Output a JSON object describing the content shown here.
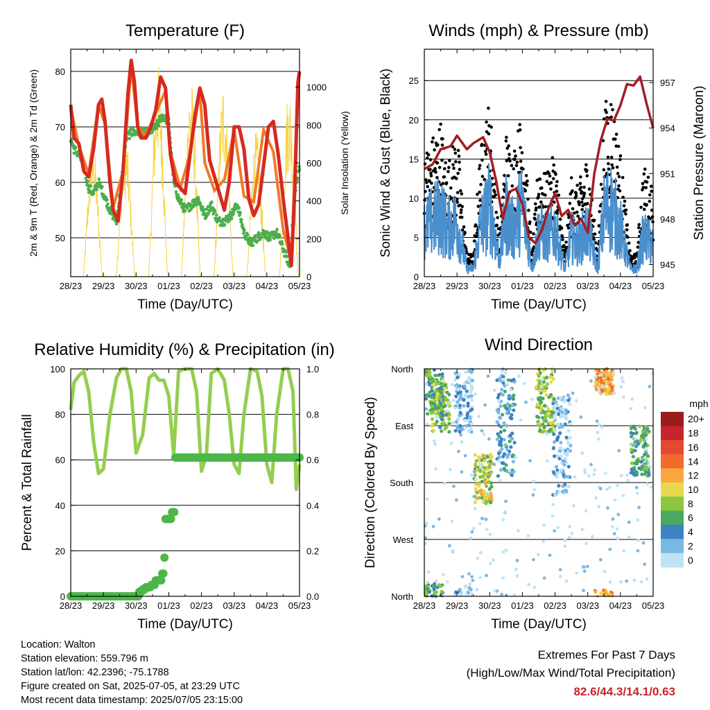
{
  "time_axis": {
    "tick_labels": [
      "28/23",
      "29/23",
      "30/23",
      "01/23",
      "02/23",
      "03/23",
      "04/23",
      "05/23"
    ],
    "xlabel": "Time (Day/UTC)"
  },
  "chart_data": [
    {
      "id": "temperature",
      "type": "line",
      "title": "Temperature (F)",
      "ylabel_left": "2m & 9m T (Red, Orange) & 2m Td (Green)",
      "ylabel_right": "Solar Insolation (Yellow)",
      "ylim_left": [
        43,
        84
      ],
      "ylim_right": [
        0,
        1200
      ],
      "yticks_left": [
        50,
        60,
        70,
        80
      ],
      "yticks_right": [
        0,
        200,
        400,
        600,
        800,
        1000
      ],
      "grid_y": [
        50,
        60,
        70,
        80
      ],
      "x_range_days": [
        0,
        7
      ],
      "series": [
        {
          "name": "2m T",
          "color": "#d62a20",
          "axis": "left",
          "x": [
            0,
            0.1,
            0.25,
            0.4,
            0.55,
            0.7,
            0.85,
            0.95,
            1.05,
            1.2,
            1.3,
            1.45,
            1.6,
            1.75,
            1.85,
            1.95,
            2.05,
            2.15,
            2.3,
            2.45,
            2.6,
            2.75,
            2.9,
            3.05,
            3.2,
            3.35,
            3.5,
            3.65,
            3.8,
            3.95,
            4.1,
            4.25,
            4.4,
            4.55,
            4.7,
            4.85,
            5.0,
            5.15,
            5.3,
            5.45,
            5.6,
            5.75,
            5.9,
            6.05,
            6.2,
            6.35,
            6.5,
            6.65,
            6.75,
            6.85,
            6.95,
            7.0
          ],
          "y": [
            74,
            68,
            67,
            62,
            61,
            66,
            74,
            75,
            71,
            60,
            55,
            53,
            62,
            76,
            82,
            78,
            70,
            68,
            68,
            70,
            73,
            79,
            77,
            65,
            60,
            59,
            58,
            65,
            72,
            77,
            74,
            64,
            61,
            58,
            55,
            60,
            70,
            70,
            66,
            57,
            54,
            56,
            63,
            70,
            71,
            65,
            57,
            50,
            45,
            58,
            78,
            80
          ]
        },
        {
          "name": "9m T",
          "color": "#f07a2a",
          "axis": "left",
          "x": [
            0,
            0.25,
            0.55,
            0.85,
            1.05,
            1.3,
            1.6,
            1.85,
            2.05,
            2.3,
            2.6,
            2.9,
            3.05,
            3.35,
            3.65,
            3.95,
            4.1,
            4.4,
            4.7,
            5.0,
            5.3,
            5.6,
            5.9,
            6.2,
            6.5,
            6.75,
            6.95,
            7.0
          ],
          "y": [
            73.5,
            66.5,
            61.5,
            74,
            70.5,
            55.5,
            62,
            81,
            70,
            68.5,
            72.5,
            76.5,
            65.5,
            59,
            65,
            76.5,
            63.5,
            58.5,
            60.5,
            69.5,
            57.5,
            56.5,
            69.5,
            65.5,
            51.5,
            45.5,
            77.5,
            79.5
          ]
        },
        {
          "name": "2m Td",
          "color": "#4cae4c",
          "axis": "left",
          "x": [
            0,
            0.1,
            0.25,
            0.4,
            0.55,
            0.7,
            0.85,
            1.0,
            1.2,
            1.4,
            1.55,
            1.7,
            1.85,
            2.0,
            2.2,
            2.4,
            2.6,
            2.8,
            3.0,
            3.15,
            3.3,
            3.5,
            3.7,
            3.9,
            4.1,
            4.3,
            4.5,
            4.7,
            4.9,
            5.1,
            5.3,
            5.5,
            5.7,
            5.9,
            6.1,
            6.3,
            6.5,
            6.7,
            6.85,
            7.0
          ],
          "y": [
            68,
            66,
            65,
            63,
            59,
            58,
            60,
            58,
            55,
            53,
            60,
            68,
            69,
            69,
            69,
            69,
            70,
            72,
            71,
            60,
            57,
            55,
            56,
            57,
            54,
            56,
            53,
            53,
            54,
            56,
            51,
            49,
            50,
            51,
            50,
            51,
            48,
            45,
            58,
            63
          ]
        },
        {
          "name": "Solar Insolation",
          "color": "#f7d33e",
          "axis": "right",
          "day_peaks": [
            720,
            740,
            1130,
            1050,
            1040,
            770,
            1000,
            1000
          ]
        }
      ]
    },
    {
      "id": "winds",
      "type": "scatter",
      "title": "Winds (mph) & Pressure (mb)",
      "ylabel_left": "Sonic Wind & Gust (Blue, Black)",
      "ylabel_right": "Station Pressure (Maroon)",
      "ylim_left": [
        0,
        29
      ],
      "ylim_right": [
        944.2,
        959.2
      ],
      "yticks_left": [
        0,
        5,
        10,
        15,
        20,
        25
      ],
      "yticks_right": [
        945,
        948,
        951,
        954,
        957
      ],
      "grid_y": [
        5,
        10,
        15,
        20,
        25
      ],
      "x_range_days": [
        0,
        7
      ],
      "series": [
        {
          "name": "Sonic Wind",
          "color": "#4a8fcc",
          "axis": "left",
          "x": [
            0,
            0.5,
            0.7,
            1.0,
            1.3,
            1.5,
            1.7,
            2.0,
            2.3,
            2.5,
            2.7,
            3.0,
            3.3,
            3.5,
            3.7,
            4.0,
            4.3,
            4.5,
            4.7,
            5.0,
            5.3,
            5.5,
            5.7,
            6.0,
            6.3,
            6.5,
            6.7,
            7.0
          ],
          "y": [
            6,
            8,
            6,
            7,
            1,
            1,
            6,
            9,
            2,
            8,
            6,
            9,
            1,
            6,
            5,
            6,
            1,
            5,
            4,
            6,
            1,
            8,
            9,
            6,
            1,
            1,
            5,
            4
          ]
        },
        {
          "name": "Gust",
          "color": "#000000",
          "axis": "left",
          "x": [
            0,
            0.5,
            0.7,
            1.0,
            1.3,
            1.5,
            1.7,
            2.0,
            2.3,
            2.5,
            2.7,
            3.0,
            3.3,
            3.5,
            3.7,
            4.0,
            4.3,
            4.5,
            4.7,
            5.0,
            5.3,
            5.5,
            5.7,
            6.0,
            6.3,
            6.5,
            6.7,
            7.0
          ],
          "y": [
            11,
            14,
            10,
            13,
            2,
            2,
            11,
            16,
            3,
            13,
            11,
            15,
            2,
            11,
            9,
            11,
            2,
            9,
            8,
            11,
            2,
            15,
            17,
            11,
            2,
            2,
            10,
            8
          ]
        },
        {
          "name": "Station Pressure",
          "color": "#a01e22",
          "axis": "right",
          "x": [
            0,
            0.25,
            0.5,
            0.8,
            1.0,
            1.3,
            1.5,
            1.8,
            2.0,
            2.2,
            2.4,
            2.6,
            2.8,
            3.0,
            3.2,
            3.4,
            3.6,
            3.8,
            4.0,
            4.2,
            4.4,
            4.6,
            4.8,
            5.0,
            5.2,
            5.4,
            5.6,
            5.8,
            6.0,
            6.2,
            6.4,
            6.6,
            6.8,
            7.0
          ],
          "y": [
            951.3,
            951.6,
            952.6,
            952.8,
            953.5,
            952.6,
            953.0,
            953.4,
            952.4,
            950.5,
            948.0,
            949.8,
            950.0,
            949.0,
            946.8,
            946.4,
            947.3,
            948.7,
            949.7,
            948.2,
            948.6,
            947.6,
            948.0,
            947.1,
            951.0,
            953.2,
            954.6,
            954.5,
            955.5,
            956.9,
            956.8,
            957.4,
            955.6,
            954.0
          ]
        }
      ]
    },
    {
      "id": "humidity",
      "type": "line",
      "title": "Relative Humidity (%) & Precipitation (in)",
      "ylabel_left": "Percent & Total Rainfall",
      "ylim_left": [
        0,
        100
      ],
      "ylim_right": [
        0,
        1.0
      ],
      "yticks_left": [
        0,
        20,
        40,
        60,
        80,
        100
      ],
      "yticks_right": [
        0.0,
        0.2,
        0.4,
        0.6,
        0.8,
        1.0
      ],
      "grid_y": [
        20,
        40,
        60,
        80
      ],
      "x_range_days": [
        0,
        7
      ],
      "series": [
        {
          "name": "Relative Humidity",
          "color": "#95cd50",
          "axis": "left",
          "x": [
            0,
            0.1,
            0.25,
            0.4,
            0.55,
            0.7,
            0.85,
            1.0,
            1.2,
            1.4,
            1.55,
            1.7,
            1.85,
            2.0,
            2.2,
            2.4,
            2.55,
            2.7,
            2.85,
            3.0,
            3.15,
            3.3,
            3.5,
            3.7,
            3.85,
            4.0,
            4.15,
            4.3,
            4.5,
            4.7,
            4.85,
            5.0,
            5.15,
            5.3,
            5.5,
            5.7,
            5.85,
            6.0,
            6.15,
            6.3,
            6.5,
            6.65,
            6.8,
            6.9,
            7.0
          ],
          "y": [
            82,
            94,
            97,
            99,
            90,
            68,
            54,
            56,
            80,
            96,
            100,
            100,
            90,
            63,
            71,
            96,
            98,
            95,
            95,
            88,
            62,
            99,
            100,
            100,
            90,
            55,
            62,
            98,
            100,
            95,
            80,
            58,
            54,
            80,
            100,
            99,
            88,
            58,
            50,
            80,
            100,
            100,
            90,
            47,
            58
          ]
        },
        {
          "name": "Total Precipitation",
          "color": "#4cb748",
          "axis": "right",
          "x": [
            0,
            0.5,
            1.0,
            1.5,
            2.0,
            2.1,
            2.2,
            2.3,
            2.45,
            2.6,
            2.7,
            2.8,
            2.85,
            2.9,
            3.0,
            3.1,
            3.2,
            3.5,
            4.0,
            4.5,
            5.0,
            5.5,
            6.0,
            6.5,
            7.0
          ],
          "y": [
            0,
            0,
            0,
            0,
            0,
            0.02,
            0.03,
            0.04,
            0.05,
            0.07,
            0.07,
            0.1,
            0.17,
            0.34,
            0.34,
            0.37,
            0.61,
            0.61,
            0.61,
            0.61,
            0.61,
            0.61,
            0.61,
            0.61,
            0.61
          ]
        }
      ]
    },
    {
      "id": "wind_direction",
      "type": "scatter",
      "title": "Wind Direction",
      "ylabel": "Direction (Colored By Speed)",
      "ytick_labels": [
        "North",
        "East",
        "South",
        "West",
        "North"
      ],
      "ylim_deg": [
        0,
        360
      ],
      "grid_y_deg": [
        90,
        180,
        270
      ],
      "x_range_days": [
        0,
        7
      ],
      "colorbar": {
        "label": "mph",
        "labels": [
          "20+",
          "18",
          "16",
          "14",
          "12",
          "10",
          "8",
          "6",
          "4",
          "2",
          "0"
        ],
        "colors": [
          "#9b1b1f",
          "#c8242b",
          "#e34a33",
          "#f26a2c",
          "#f9a640",
          "#e7d94d",
          "#8cc63f",
          "#49a861",
          "#3d82c4",
          "#7ab8e4",
          "#bfe3f5"
        ]
      },
      "clusters": [
        {
          "day": 0.3,
          "deg_center": 330,
          "spread": 50,
          "speed": 6
        },
        {
          "day": 0.5,
          "deg_center": 300,
          "spread": 40,
          "speed": 7
        },
        {
          "day": 1.2,
          "deg_center": 320,
          "spread": 60,
          "speed": 2
        },
        {
          "day": 1.8,
          "deg_center": 185,
          "spread": 40,
          "speed": 9
        },
        {
          "day": 2.5,
          "deg_center": 270,
          "spread": 80,
          "speed": 4
        },
        {
          "day": 3.7,
          "deg_center": 310,
          "spread": 50,
          "speed": 8
        },
        {
          "day": 4.2,
          "deg_center": 240,
          "spread": 80,
          "speed": 2
        },
        {
          "day": 5.5,
          "deg_center": 345,
          "spread": 25,
          "speed": 12
        },
        {
          "day": 6.6,
          "deg_center": 230,
          "spread": 40,
          "speed": 6
        }
      ]
    }
  ],
  "info": {
    "location": "Location: Walton",
    "elevation": "Station elevation: 559.796 m",
    "latlon": "Station lat/lon: 42.2396; -75.1788",
    "created": "Figure created on Sat, 2025-07-05, at 23:29 UTC",
    "recent": "Most recent data timestamp: 2025/07/05 23:15:00"
  },
  "extremes": {
    "heading": "Extremes For Past 7 Days",
    "subheading": "(High/Low/Max Wind/Total Precipitation)",
    "values": "82.6/44.3/14.1/0.63",
    "value_color": "#c8242b"
  }
}
